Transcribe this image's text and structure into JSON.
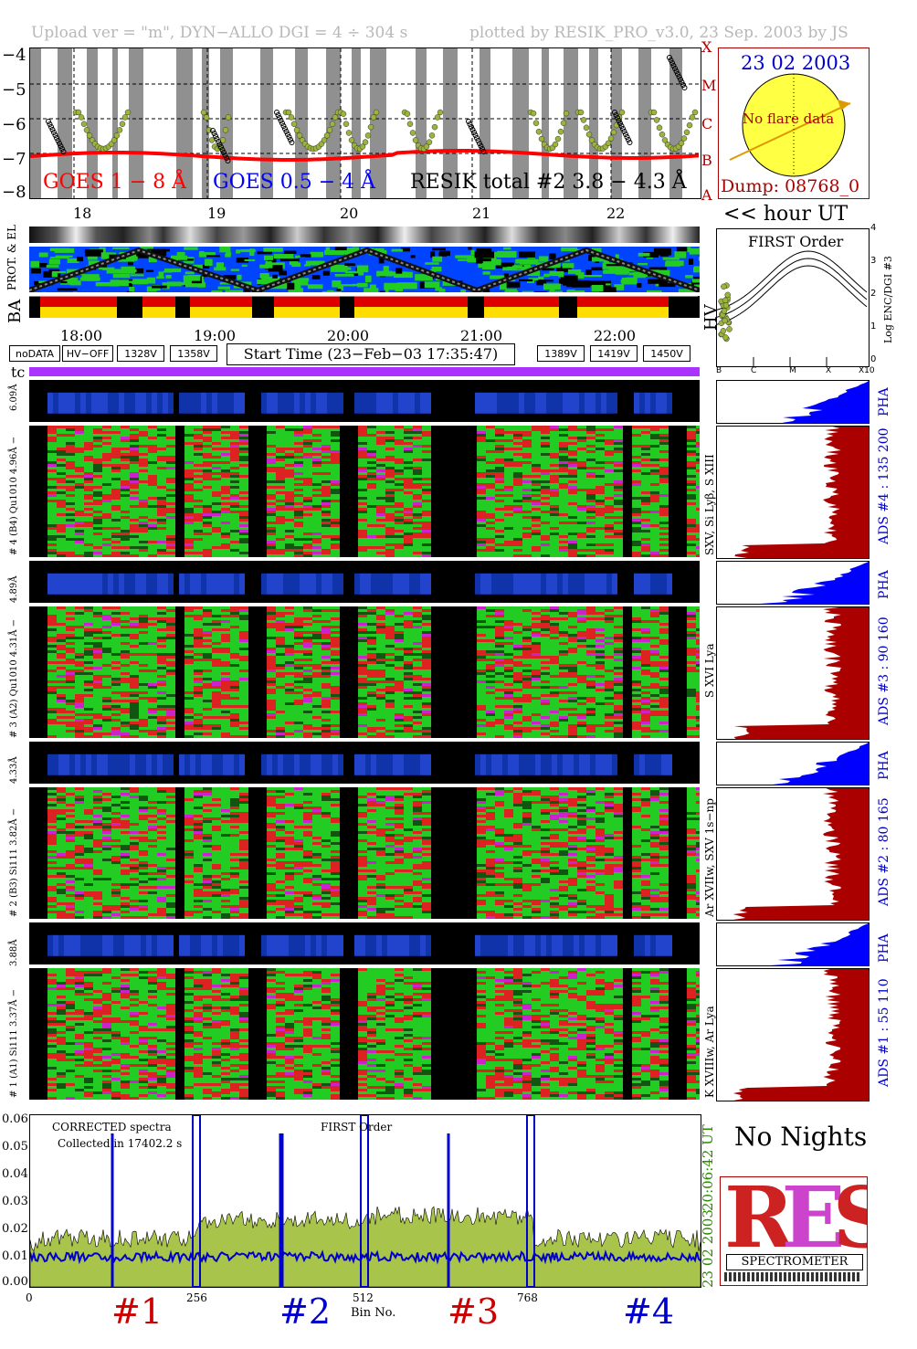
{
  "header": {
    "left": "Upload ver = \"m\", DYN−ALLO DGI =   4 ÷ 304 s",
    "right": "plotted by RESIK_PRO_v3.0, 23 Sep. 2003 by JS"
  },
  "goes": {
    "y_ticks": [
      "−4",
      "−5",
      "−6",
      "−7",
      "−8"
    ],
    "class_labels": [
      "X",
      "M",
      "C",
      "B",
      "A"
    ],
    "label_1_8": "GOES 1 − 8 Å",
    "label_05_4": "GOES 0.5 − 4 Å",
    "label_resik": "RESIK total #2  3.8 − 4.3 Å",
    "hour_ticks": [
      "18",
      "19",
      "20",
      "21",
      "22"
    ],
    "hour_caption": "<< hour UT",
    "colors": {
      "goes18": "#ff0000",
      "goes054": "#0000ff",
      "resik": "#9ab43c"
    }
  },
  "sun": {
    "date": "23 02 2003",
    "flare_text": "No flare data",
    "dump": "Dump: 08768_0"
  },
  "status": {
    "prot_label": "PROT. & EL",
    "ba_label": "BA",
    "hv_label": "HV",
    "time_ticks": [
      "18:00",
      "19:00",
      "20:00",
      "21:00",
      "22:00"
    ],
    "start_time": "Start Time (23−Feb−03 17:35:47)",
    "legend_left": [
      {
        "text": "noDATA",
        "bg": "#808080",
        "fg": "#ffffff"
      },
      {
        "text": "HV−OFF",
        "bg": "#000000",
        "fg": "#ffffff"
      },
      {
        "text": "1328V",
        "bg": "#ffffcc",
        "fg": "#000000"
      },
      {
        "text": "1358V",
        "bg": "#0000ff",
        "fg": "#ffffff"
      }
    ],
    "legend_right": [
      {
        "text": "1389V",
        "bg": "#ff9922",
        "fg": "#ffffff"
      },
      {
        "text": "1419V",
        "bg": "#ffff22",
        "fg": "#000000"
      },
      {
        "text": "1450V",
        "bg": "#cc0000",
        "fg": "#ffffff"
      }
    ],
    "tc_label": "tc"
  },
  "first_order": {
    "title": "FIRST Order",
    "ylabel": "Log ENC/DGI #3",
    "y_ticks": [
      "4",
      "3",
      "2",
      "1",
      "0"
    ],
    "x_ticks": [
      "B",
      "C",
      "M",
      "X",
      "X10"
    ]
  },
  "channels": [
    {
      "pha_left": "6.09Å",
      "left": "# 4 (B4) Qu1010 4.96Å −",
      "right_line": "SXV, Si Lyβ, S XIII",
      "ads": "ADS #4 :   135 200",
      "pha": "PHA"
    },
    {
      "pha_left": "4.89Å",
      "left": "# 3 (A2) Qu1010  4.31Å −",
      "right_line": "S XVI Lya",
      "ads": "ADS #3 :    90 160",
      "pha": "PHA"
    },
    {
      "pha_left": "4.33Å",
      "left": "# 2 (B3) Si111  3.82Å −",
      "right_line": "Ar XVIIw, SXV 1s−np",
      "ads": "ADS #2 :    80 165",
      "pha": "PHA"
    },
    {
      "pha_left": "3.88Å",
      "left": "# 1 (A1) Si111  3.37Å −",
      "right_line": "K XVIIIw, Ar Lya",
      "ads": "ADS #1 :    55 110",
      "pha": "PHA"
    }
  ],
  "spectrum": {
    "title_left": "CORRECTED spectra",
    "collected": "Collected in 17402.2 s",
    "title_center": "FIRST Order",
    "y_ticks": [
      "0.06",
      "0.05",
      "0.04",
      "0.03",
      "0.02",
      "0.01",
      "0.00"
    ],
    "x_ticks": [
      "0",
      "256",
      "512",
      "768"
    ],
    "xlabel": "Bin No.",
    "time": "20:06:42 UT",
    "date": "23 02 2003",
    "sections": [
      {
        "text": "#1",
        "color": "#cc0000"
      },
      {
        "text": "#2",
        "color": "#0000cc"
      },
      {
        "text": "#3",
        "color": "#cc0000"
      },
      {
        "text": "#4",
        "color": "#0000cc"
      }
    ]
  },
  "no_nights": "No Nights",
  "logo": {
    "letters": "RESIK",
    "caption": "SPECTROMETER"
  }
}
